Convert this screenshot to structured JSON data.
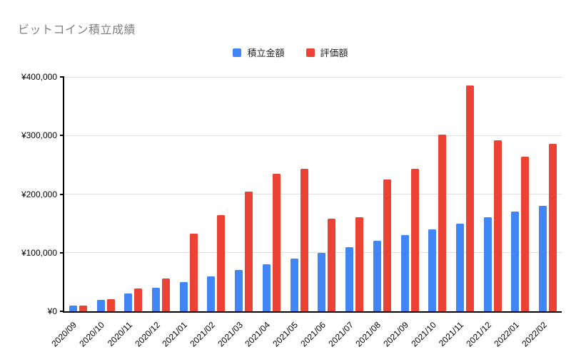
{
  "title": "ビットコイン積立成績",
  "colors": {
    "title": "#7f7f7f",
    "axis": "#000000",
    "grid": "#e0e0e0",
    "tick_label": "#000000",
    "series_blue": "#4285F4",
    "series_red": "#EA4335"
  },
  "chart_data": {
    "type": "bar",
    "title": "ビットコイン積立成績",
    "categories": [
      "2020/09",
      "2020/10",
      "2020/11",
      "2020/12",
      "2021/01",
      "2021/02",
      "2021/03",
      "2021/04",
      "2021/05",
      "2021/06",
      "2021/07",
      "2021/08",
      "2021/09",
      "2021/10",
      "2021/11",
      "2021/12",
      "2022/01",
      "2022/02"
    ],
    "series": [
      {
        "name": "積立金額",
        "color": "#4285F4",
        "values": [
          10000,
          20000,
          30000,
          40000,
          50000,
          60000,
          70000,
          80000,
          90000,
          100000,
          110000,
          120000,
          130000,
          140000,
          150000,
          160000,
          170000,
          180000
        ]
      },
      {
        "name": "評価額",
        "color": "#EA4335",
        "values": [
          9500,
          21000,
          39000,
          56000,
          133000,
          164000,
          204000,
          235000,
          243000,
          158000,
          161000,
          225000,
          243000,
          302000,
          385000,
          292000,
          264000,
          286000
        ]
      }
    ],
    "ylim": [
      0,
      400000
    ],
    "yticks": [
      0,
      100000,
      200000,
      300000,
      400000
    ],
    "ytick_labels": [
      "¥0",
      "¥100,000",
      "¥200,000",
      "¥300,000",
      "¥400,000"
    ],
    "grid": true,
    "legend_position": "top",
    "xlabel": "",
    "ylabel": ""
  }
}
